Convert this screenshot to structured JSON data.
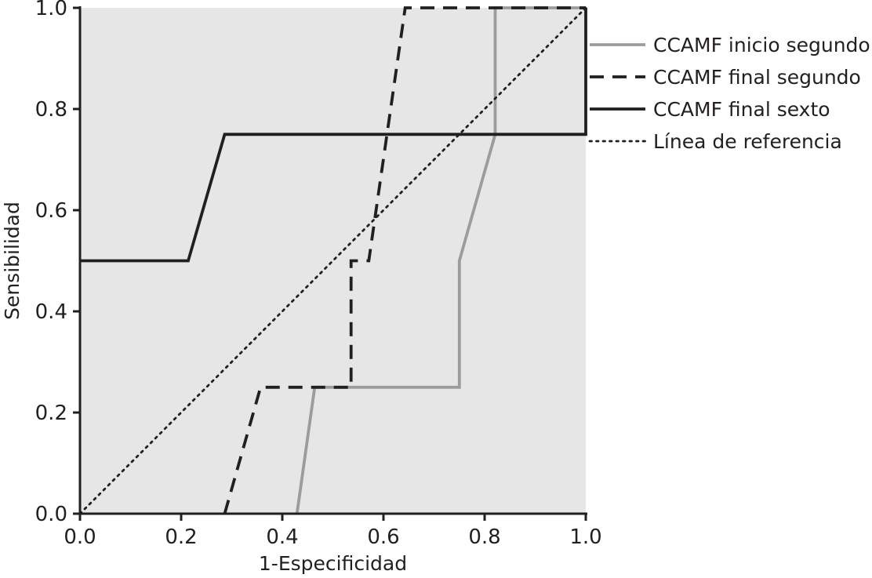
{
  "chart_data": {
    "type": "line",
    "xlabel": "1-Especificidad",
    "ylabel": "Sensibilidad",
    "xlim": [
      0,
      1
    ],
    "ylim": [
      0,
      1
    ],
    "x_ticks": [
      "0.0",
      "0.2",
      "0.4",
      "0.6",
      "0.8",
      "1.0"
    ],
    "y_ticks": [
      "0.0",
      "0.2",
      "0.4",
      "0.6",
      "0.8",
      "1.0"
    ],
    "grid": false,
    "background": "#e6e6e7",
    "legend_position": "right",
    "series": [
      {
        "name": "CCAMF inicio segundo",
        "style": "solid",
        "color": "#9d9c9c",
        "points": [
          [
            0.429,
            0.0
          ],
          [
            0.464,
            0.25
          ],
          [
            0.75,
            0.25
          ],
          [
            0.75,
            0.5
          ],
          [
            0.821,
            0.75
          ],
          [
            0.821,
            1.0
          ],
          [
            1.0,
            1.0
          ]
        ]
      },
      {
        "name": "CCAMF final segundo",
        "style": "dashed",
        "color": "#231f20",
        "points": [
          [
            0.286,
            0.0
          ],
          [
            0.357,
            0.25
          ],
          [
            0.536,
            0.25
          ],
          [
            0.536,
            0.5
          ],
          [
            0.571,
            0.5
          ],
          [
            0.643,
            1.0
          ],
          [
            1.0,
            1.0
          ]
        ]
      },
      {
        "name": "CCAMF final sexto",
        "style": "solid",
        "color": "#231f20",
        "points": [
          [
            0.0,
            0.5
          ],
          [
            0.214,
            0.5
          ],
          [
            0.286,
            0.75
          ],
          [
            1.0,
            0.75
          ],
          [
            1.0,
            1.0
          ]
        ]
      },
      {
        "name": "Línea de referencia",
        "style": "dotted",
        "color": "#231f20",
        "points": [
          [
            0.0,
            0.0
          ],
          [
            1.0,
            1.0
          ]
        ]
      }
    ]
  }
}
